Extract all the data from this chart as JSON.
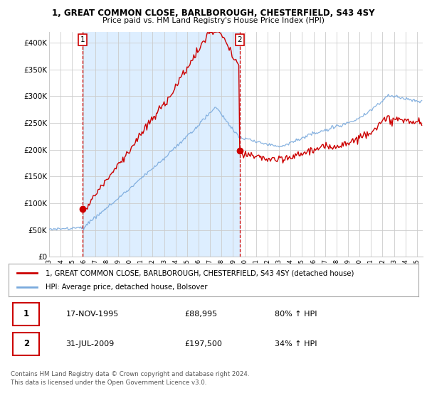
{
  "title_line1": "1, GREAT COMMON CLOSE, BARLBOROUGH, CHESTERFIELD, S43 4SY",
  "title_line2": "Price paid vs. HM Land Registry's House Price Index (HPI)",
  "ylim": [
    0,
    420000
  ],
  "yticks": [
    0,
    50000,
    100000,
    150000,
    200000,
    250000,
    300000,
    350000,
    400000
  ],
  "ytick_labels": [
    "£0",
    "£50K",
    "£100K",
    "£150K",
    "£200K",
    "£250K",
    "£300K",
    "£350K",
    "£400K"
  ],
  "property_color": "#cc0000",
  "hpi_color": "#7aaadd",
  "shade_color": "#ddeeff",
  "transaction1_date": "17-NOV-1995",
  "transaction1_price": 88995,
  "transaction1_hpi": "80% ↑ HPI",
  "transaction2_date": "31-JUL-2009",
  "transaction2_price": 197500,
  "transaction2_hpi": "34% ↑ HPI",
  "legend_property": "1, GREAT COMMON CLOSE, BARLBOROUGH, CHESTERFIELD, S43 4SY (detached house)",
  "legend_hpi": "HPI: Average price, detached house, Bolsover",
  "footer": "Contains HM Land Registry data © Crown copyright and database right 2024.\nThis data is licensed under the Open Government Licence v3.0.",
  "vline1_x": 1995.89,
  "vline2_x": 2009.58,
  "background_color": "#ffffff",
  "grid_color": "#cccccc",
  "xlim_left": 1993.0,
  "xlim_right": 2025.5
}
